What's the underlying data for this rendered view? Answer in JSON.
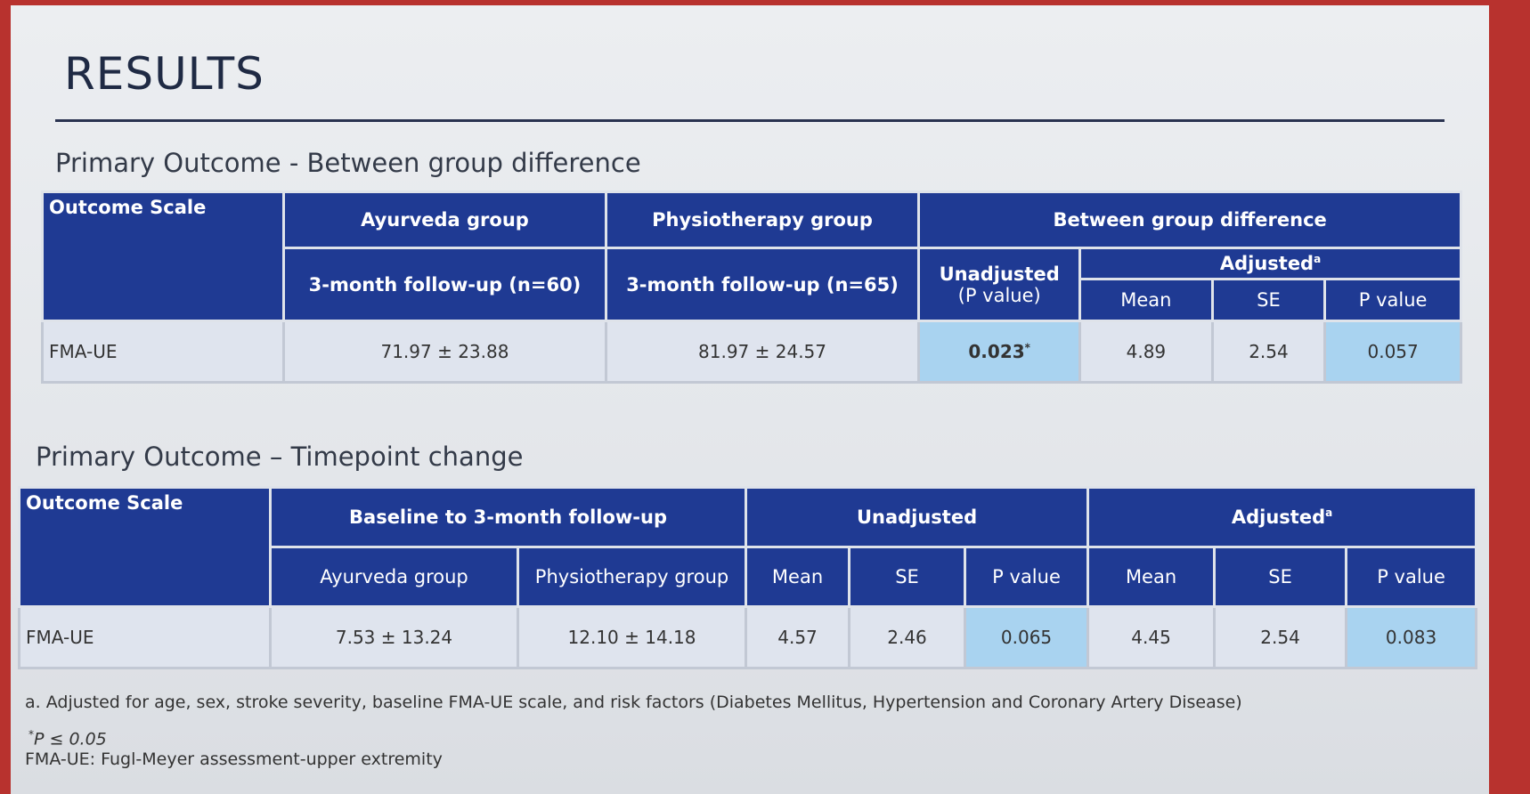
{
  "title": "RESULTS",
  "table1": {
    "caption": "Primary Outcome - Between group difference",
    "headers": {
      "outcome_scale": "Outcome Scale",
      "ayurveda": "Ayurveda group",
      "ayurveda_sub": "3-month follow-up (n=60)",
      "physio": "Physiotherapy group",
      "physio_sub": "3-month follow-up (n=65)",
      "between": "Between group difference",
      "unadjusted": [
        "Unadjusted",
        "(P value)"
      ],
      "adjusted": "Adjusted",
      "adjusted_mark": "a",
      "mean": "Mean",
      "se": "SE",
      "p": "P value"
    },
    "rows": [
      {
        "scale": "FMA-UE",
        "ayurveda": "71.97 ± 23.88",
        "physio": "81.97 ± 24.57",
        "unadjusted_p": "0.023",
        "unadjusted_mark": "*",
        "mean": "4.89",
        "se": "2.54",
        "p": "0.057"
      }
    ]
  },
  "table2": {
    "caption": "Primary Outcome – Timepoint change",
    "headers": {
      "outcome_scale": "Outcome Scale",
      "baseline": "Baseline to 3-month follow-up",
      "ayurveda": "Ayurveda group",
      "physio": "Physiotherapy group",
      "unadjusted": "Unadjusted",
      "adjusted": "Adjusted",
      "adjusted_mark": "a",
      "unadjusted_cols": [
        "Mean",
        "SE",
        "P value"
      ],
      "adjusted_cols": [
        "Mean",
        "SE",
        "P value"
      ]
    },
    "rows": [
      {
        "scale": "FMA-UE",
        "ayurveda": "7.53 ± 13.24",
        "physio": "12.10 ± 14.18",
        "unadjusted": [
          "4.57",
          "2.46",
          "0.065"
        ],
        "adjusted": [
          "4.45",
          "2.54",
          "0.083"
        ]
      }
    ]
  },
  "footnotes": {
    "adjusted": "a. Adjusted for age, sex, stroke severity, baseline FMA-UE scale, and risk factors (Diabetes Mellitus, Hypertension and Coronary Artery Disease)",
    "significance_mark": "*",
    "significance": "P ≤ 0.05",
    "abbreviation": "FMA-UE: Fugl-Meyer assessment-upper extremity"
  }
}
